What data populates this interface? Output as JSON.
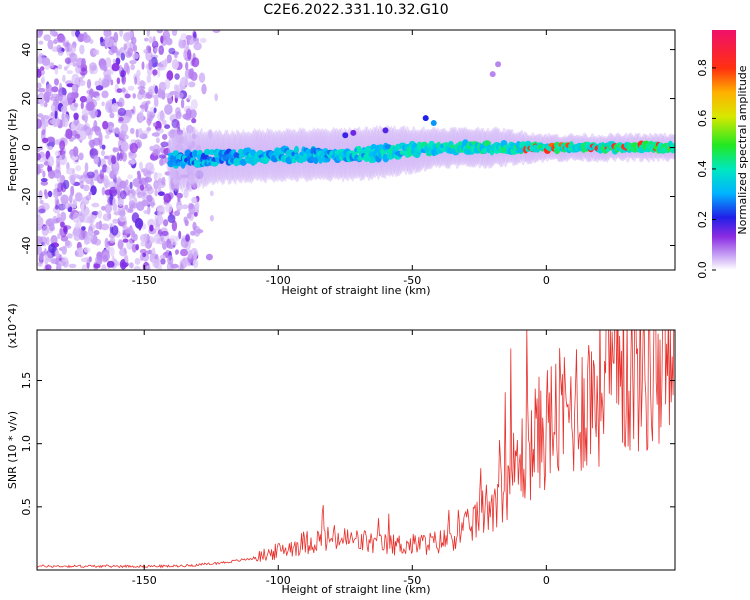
{
  "title": "C2E6.2022.331.10.32.G10",
  "chart_data": [
    {
      "type": "heatmap",
      "xlabel": "Height of straight line (km)",
      "ylabel": "Frequency (Hz)",
      "xlim": [
        -190,
        48
      ],
      "ylim": [
        -50,
        48
      ],
      "xticks": [
        -150,
        -100,
        -50,
        0
      ],
      "yticks": [
        -40,
        -20,
        0,
        20,
        40
      ],
      "colorbar": {
        "label": "Normalized spectral amplitude",
        "range": [
          0.0,
          0.95
        ],
        "ticks": [
          0.0,
          0.2,
          0.4,
          0.6,
          0.8
        ]
      },
      "ridge": {
        "x": [
          -140,
          -120,
          -100,
          -80,
          -60,
          -40,
          -20,
          0,
          20,
          45
        ],
        "freq": [
          -5,
          -4,
          -3,
          -3,
          -2,
          0,
          0,
          0,
          0,
          0
        ],
        "half_width": [
          5,
          4,
          4,
          4,
          4,
          3,
          3,
          2,
          2,
          2
        ]
      },
      "noise_region": {
        "x": [
          -190,
          -130
        ],
        "freq": [
          -50,
          48
        ]
      }
    },
    {
      "type": "line",
      "xlabel": "Height of straight line (km)",
      "ylabel": "SNR (10 * v/v)",
      "y_scale_note": "(x10^4)",
      "xlim": [
        -190,
        48
      ],
      "ylim": [
        0,
        1.9
      ],
      "xticks": [
        -150,
        -100,
        -50,
        0
      ],
      "yticks": [
        0.5,
        1.0,
        1.5
      ],
      "series": [
        {
          "color": "#e8312c",
          "x": [
            -190,
            -160,
            -140,
            -130,
            -120,
            -110,
            -100,
            -90,
            -80,
            -70,
            -60,
            -50,
            -40,
            -30,
            -20,
            -10,
            0,
            10,
            20,
            30,
            40,
            48
          ],
          "y": [
            0.03,
            0.03,
            0.03,
            0.04,
            0.06,
            0.09,
            0.15,
            0.22,
            0.25,
            0.23,
            0.2,
            0.2,
            0.22,
            0.32,
            0.55,
            0.85,
            1.15,
            1.28,
            1.45,
            1.58,
            1.63,
            1.62
          ]
        }
      ]
    }
  ]
}
